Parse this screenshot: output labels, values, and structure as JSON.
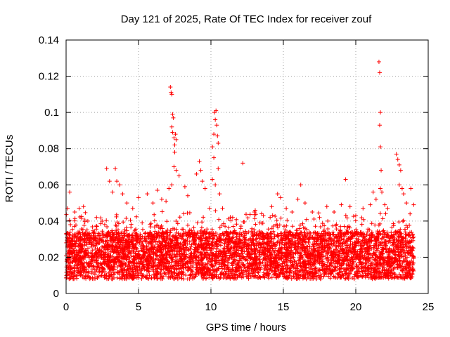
{
  "chart_data": {
    "type": "scatter",
    "title": "Day 121 of 2025, Rate Of TEC Index for receiver zouf",
    "xlabel": "GPS time / hours",
    "ylabel": "ROTI / TECUs",
    "xlim": [
      0,
      25
    ],
    "ylim": [
      0,
      0.14
    ],
    "x_ticks": [
      0,
      5,
      10,
      15,
      20,
      25
    ],
    "y_ticks": [
      0,
      0.02,
      0.04,
      0.06,
      0.08,
      0.1,
      0.12,
      0.14
    ],
    "x_tick_labels": [
      "0",
      "5",
      "10",
      "15",
      "20",
      "25"
    ],
    "y_tick_labels": [
      "0",
      "0.02",
      "0.04",
      "0.06",
      "0.08",
      "0.1",
      "0.12",
      "0.14"
    ],
    "grid": true,
    "marker": "+",
    "color": "#ff0000",
    "series": [
      {
        "name": "ROTI",
        "description_of_dense_band": "approx. 0.008–0.035 TECU continuous from 0 to 24 h",
        "points": [
          [
            0.1,
            0.047
          ],
          [
            0.25,
            0.056
          ],
          [
            0.3,
            0.038
          ],
          [
            0.6,
            0.045
          ],
          [
            0.9,
            0.047
          ],
          [
            1.2,
            0.048
          ],
          [
            1.5,
            0.04
          ],
          [
            2.1,
            0.042
          ],
          [
            2.8,
            0.069
          ],
          [
            3.0,
            0.062
          ],
          [
            3.2,
            0.056
          ],
          [
            3.4,
            0.069
          ],
          [
            3.5,
            0.062
          ],
          [
            3.7,
            0.06
          ],
          [
            3.9,
            0.055
          ],
          [
            4.2,
            0.05
          ],
          [
            4.6,
            0.047
          ],
          [
            5.0,
            0.053
          ],
          [
            5.6,
            0.055
          ],
          [
            6.0,
            0.05
          ],
          [
            6.3,
            0.057
          ],
          [
            6.6,
            0.052
          ],
          [
            6.9,
            0.051
          ],
          [
            7.2,
            0.114
          ],
          [
            7.25,
            0.111
          ],
          [
            7.3,
            0.11
          ],
          [
            7.35,
            0.099
          ],
          [
            7.4,
            0.097
          ],
          [
            7.3,
            0.092
          ],
          [
            7.35,
            0.089
          ],
          [
            7.45,
            0.086
          ],
          [
            7.5,
            0.082
          ],
          [
            7.55,
            0.088
          ],
          [
            7.6,
            0.085
          ],
          [
            7.5,
            0.078
          ],
          [
            7.45,
            0.07
          ],
          [
            7.6,
            0.068
          ],
          [
            7.3,
            0.06
          ],
          [
            7.1,
            0.058
          ],
          [
            7.8,
            0.065
          ],
          [
            8.2,
            0.059
          ],
          [
            8.4,
            0.054
          ],
          [
            9.0,
            0.066
          ],
          [
            9.2,
            0.073
          ],
          [
            9.3,
            0.068
          ],
          [
            9.4,
            0.062
          ],
          [
            9.6,
            0.058
          ],
          [
            9.9,
            0.047
          ],
          [
            10.1,
            0.081
          ],
          [
            10.2,
            0.088
          ],
          [
            10.25,
            0.1
          ],
          [
            10.3,
            0.096
          ],
          [
            10.35,
            0.101
          ],
          [
            10.4,
            0.093
          ],
          [
            10.45,
            0.087
          ],
          [
            10.5,
            0.083
          ],
          [
            10.2,
            0.075
          ],
          [
            10.1,
            0.063
          ],
          [
            10.3,
            0.06
          ],
          [
            10.5,
            0.069
          ],
          [
            10.6,
            0.055
          ],
          [
            10.8,
            0.047
          ],
          [
            11.5,
            0.042
          ],
          [
            12.2,
            0.072
          ],
          [
            13.0,
            0.045
          ],
          [
            13.5,
            0.044
          ],
          [
            14.2,
            0.048
          ],
          [
            14.6,
            0.055
          ],
          [
            14.8,
            0.053
          ],
          [
            15.2,
            0.047
          ],
          [
            15.6,
            0.045
          ],
          [
            16.0,
            0.052
          ],
          [
            16.2,
            0.06
          ],
          [
            16.5,
            0.05
          ],
          [
            17.0,
            0.045
          ],
          [
            17.5,
            0.042
          ],
          [
            18.0,
            0.048
          ],
          [
            18.5,
            0.045
          ],
          [
            19.0,
            0.049
          ],
          [
            19.3,
            0.063
          ],
          [
            19.6,
            0.048
          ],
          [
            20.0,
            0.043
          ],
          [
            20.5,
            0.047
          ],
          [
            21.0,
            0.049
          ],
          [
            21.2,
            0.056
          ],
          [
            21.4,
            0.052
          ],
          [
            21.6,
            0.128
          ],
          [
            21.65,
            0.122
          ],
          [
            21.7,
            0.1
          ],
          [
            21.65,
            0.093
          ],
          [
            21.7,
            0.081
          ],
          [
            21.75,
            0.068
          ],
          [
            21.7,
            0.058
          ],
          [
            21.8,
            0.056
          ],
          [
            22.0,
            0.049
          ],
          [
            22.2,
            0.047
          ],
          [
            22.8,
            0.077
          ],
          [
            22.9,
            0.074
          ],
          [
            23.0,
            0.071
          ],
          [
            23.1,
            0.068
          ],
          [
            23.0,
            0.06
          ],
          [
            23.2,
            0.058
          ],
          [
            23.3,
            0.055
          ],
          [
            23.5,
            0.05
          ],
          [
            23.8,
            0.058
          ],
          [
            24.0,
            0.049
          ]
        ]
      }
    ]
  }
}
